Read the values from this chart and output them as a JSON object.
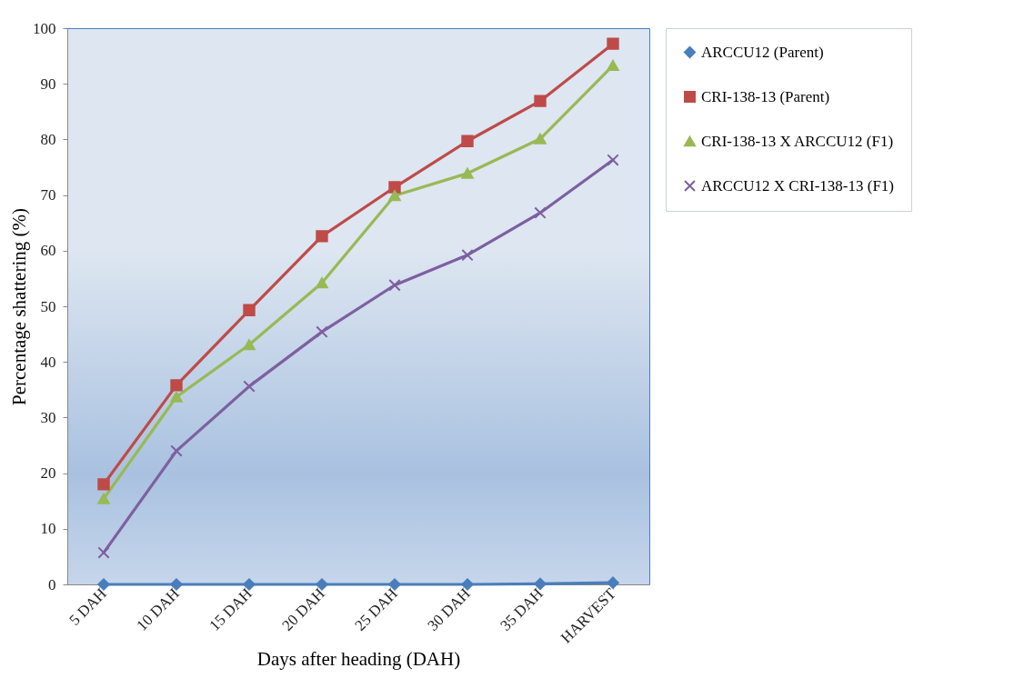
{
  "chart_data": {
    "type": "line",
    "xlabel": "Days after heading (DAH)",
    "ylabel": "Percentage shattering (%)",
    "categories": [
      "5 DAH",
      "10 DAH",
      "15 DAH",
      "20 DAH",
      "25 DAH",
      "30 DAH",
      "35 DAH",
      "HARVEST"
    ],
    "ylim": [
      0,
      100
    ],
    "yticks": [
      0,
      10,
      20,
      30,
      40,
      50,
      60,
      70,
      80,
      90,
      100
    ],
    "grid": false,
    "legend": "right",
    "line_style": "solid",
    "series": [
      {
        "name": "ARCCU12 (Parent)",
        "color": "#4a7ebb",
        "marker": "diamond",
        "values": [
          0,
          0,
          0,
          0,
          0,
          0,
          0.1,
          0.3
        ]
      },
      {
        "name": "CRI-138-13 (Parent)",
        "color": "#be4b48",
        "marker": "square",
        "values": [
          18.0,
          35.8,
          49.3,
          62.6,
          71.4,
          79.7,
          86.9,
          97.2
        ]
      },
      {
        "name": "CRI-138-13 X ARCCU12 (F1)",
        "color": "#98b954",
        "marker": "triangle",
        "values": [
          15.4,
          33.7,
          43.1,
          54.2,
          69.9,
          73.9,
          80.1,
          93.3
        ]
      },
      {
        "name": "ARCCU12 X CRI-138-13 (F1)",
        "color": "#7d60a0",
        "marker": "cross",
        "values": [
          5.7,
          24.0,
          35.6,
          45.4,
          53.8,
          59.2,
          66.8,
          76.3
        ]
      }
    ]
  }
}
